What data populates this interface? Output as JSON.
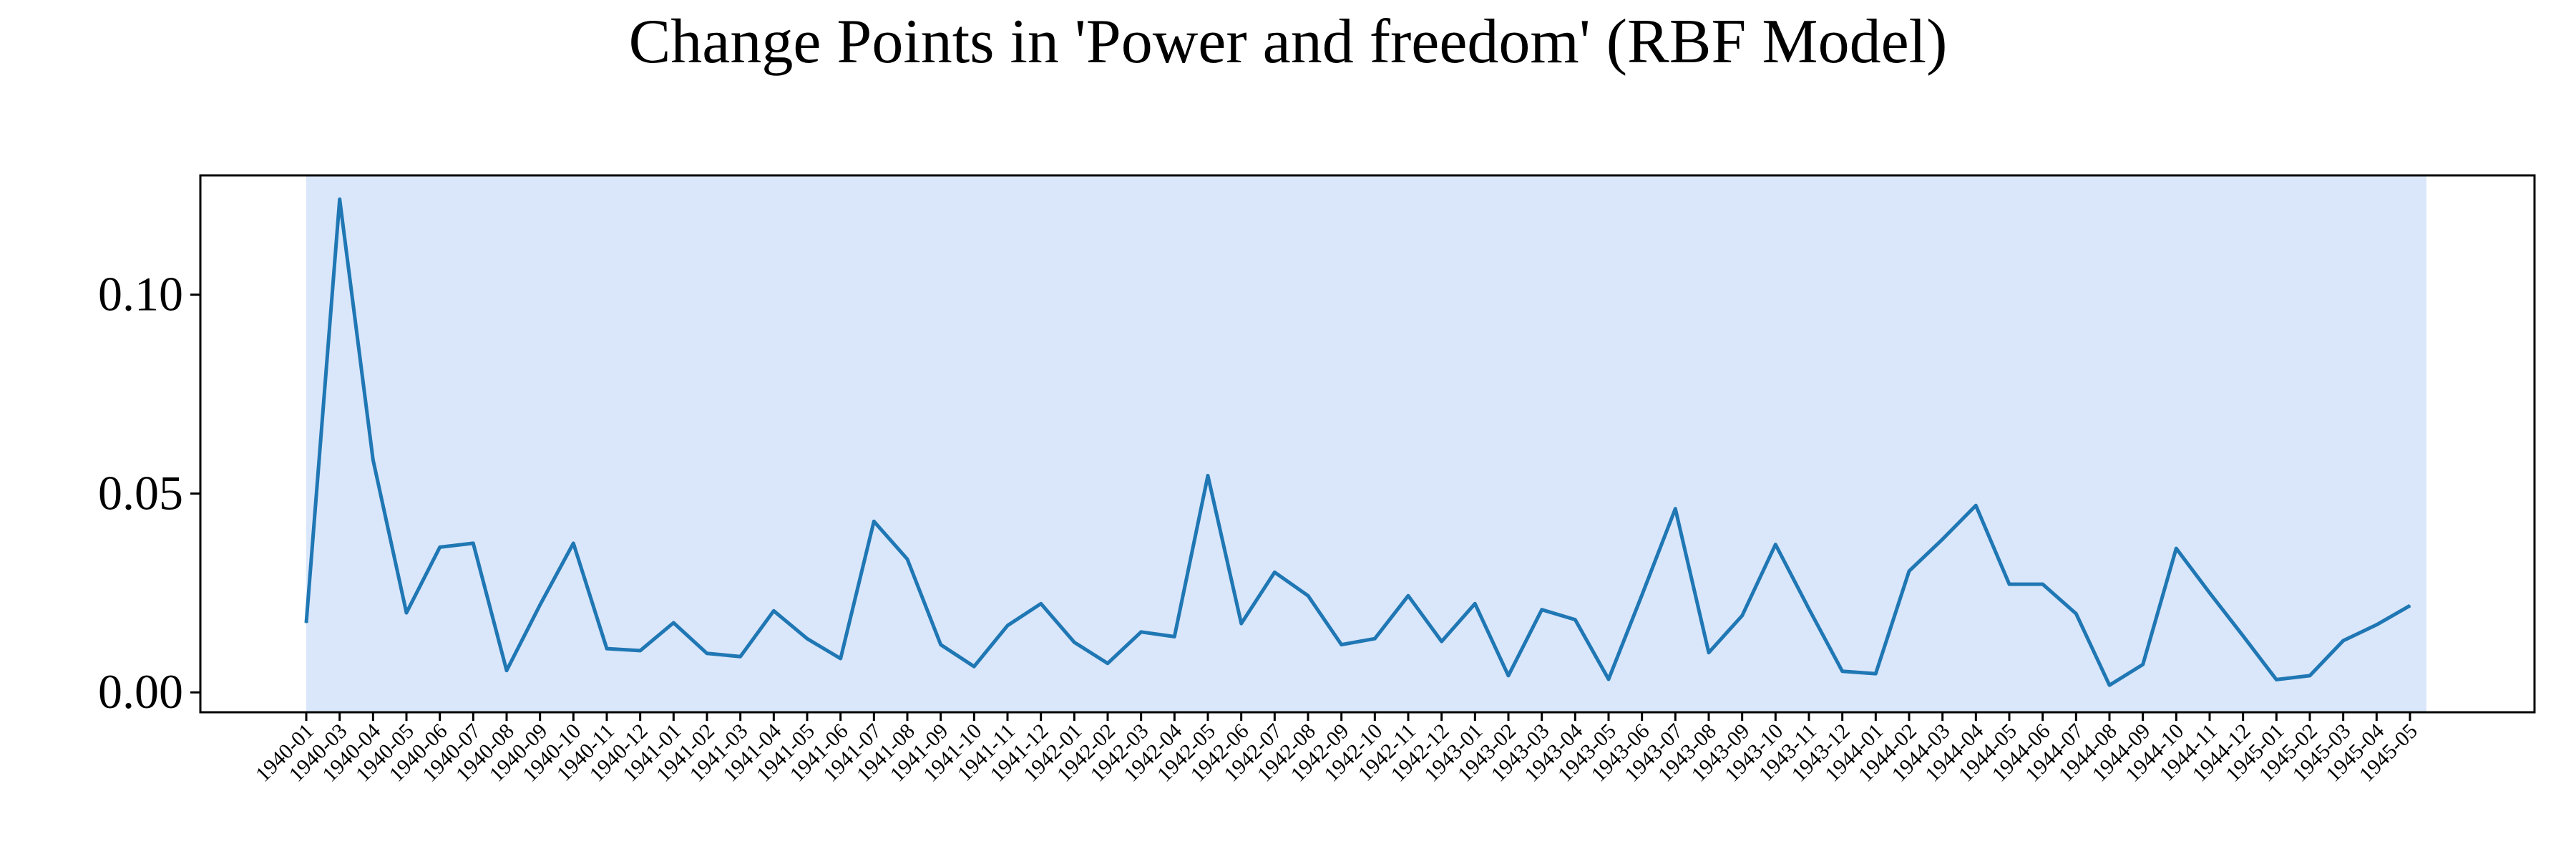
{
  "chart_data": {
    "type": "line",
    "title": "Change Points in 'Power and freedom' (RBF Model)",
    "xlabel": "",
    "ylabel": "",
    "x": [
      "1940-01",
      "1940-03",
      "1940-04",
      "1940-05",
      "1940-06",
      "1940-07",
      "1940-08",
      "1940-09",
      "1940-10",
      "1940-11",
      "1940-12",
      "1941-01",
      "1941-02",
      "1941-03",
      "1941-04",
      "1941-05",
      "1941-06",
      "1941-07",
      "1941-08",
      "1941-09",
      "1941-10",
      "1941-11",
      "1941-12",
      "1942-01",
      "1942-02",
      "1942-03",
      "1942-04",
      "1942-05",
      "1942-06",
      "1942-07",
      "1942-08",
      "1942-09",
      "1942-10",
      "1942-11",
      "1942-12",
      "1943-01",
      "1943-02",
      "1943-03",
      "1943-04",
      "1943-05",
      "1943-06",
      "1943-07",
      "1943-08",
      "1943-09",
      "1943-10",
      "1943-11",
      "1943-12",
      "1944-01",
      "1944-02",
      "1944-03",
      "1944-04",
      "1944-05",
      "1944-06",
      "1944-07",
      "1944-08",
      "1944-09",
      "1944-10",
      "1944-11",
      "1944-12",
      "1945-01",
      "1945-02",
      "1945-03",
      "1945-04",
      "1945-05"
    ],
    "series": [
      {
        "values": [
          0.0175,
          0.124,
          0.0585,
          0.02,
          0.0365,
          0.0375,
          0.0055,
          0.022,
          0.0375,
          0.011,
          0.0105,
          0.0175,
          0.0098,
          0.009,
          0.0205,
          0.0135,
          0.0085,
          0.043,
          0.0335,
          0.012,
          0.0065,
          0.0168,
          0.0223,
          0.0126,
          0.0073,
          0.0152,
          0.014,
          0.0545,
          0.0173,
          0.0302,
          0.0243,
          0.012,
          0.0135,
          0.0243,
          0.0128,
          0.0223,
          0.0042,
          0.0208,
          0.0183,
          0.0033,
          0.0245,
          0.0462,
          0.01,
          0.0193,
          0.0372,
          0.021,
          0.0053,
          0.0047,
          0.0305,
          0.0385,
          0.047,
          0.0272,
          0.0272,
          0.0198,
          0.0018,
          0.007,
          0.0362,
          0.025,
          0.0142,
          0.0032,
          0.0042,
          0.013,
          0.017,
          0.0218
        ],
        "color": "#1f77b4"
      }
    ],
    "ylim": [
      -0.005,
      0.13
    ],
    "yticks": [
      0.0,
      0.05,
      0.1
    ],
    "ytick_labels": [
      "0.00",
      "0.05",
      "0.10"
    ],
    "highlight_span": {
      "from": "1940-01",
      "to": "1945-05",
      "color": "#dae6fa"
    },
    "grid": false,
    "legend": "none"
  }
}
